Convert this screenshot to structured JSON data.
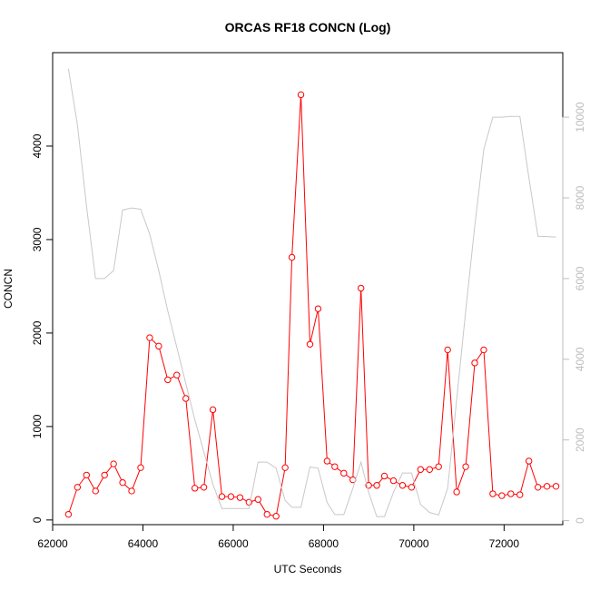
{
  "chart_data": {
    "type": "line",
    "title": "ORCAS RF18 CONCN (Log)",
    "xlabel": "UTC Seconds",
    "ylabel": "CONCN",
    "xlim": [
      62000,
      73300
    ],
    "ylim": [
      -50,
      5000
    ],
    "y2lim": [
      -100,
      11600
    ],
    "x_ticks": [
      "62000",
      "64000",
      "66000",
      "68000",
      "70000",
      "72000"
    ],
    "y_ticks": [
      "0",
      "1000",
      "2000",
      "3000",
      "4000"
    ],
    "y2_ticks": [
      "0",
      "2000",
      "4000",
      "6000",
      "8000",
      "10000"
    ],
    "grid": false,
    "series": [
      {
        "color": "#ff0000",
        "marker": "open-circle",
        "axis": "left",
        "x": [
          62350,
          62550,
          62750,
          62950,
          63150,
          63350,
          63550,
          63750,
          63950,
          64150,
          64350,
          64550,
          64750,
          64950,
          65150,
          65350,
          65550,
          65750,
          65950,
          66150,
          66350,
          66550,
          66750,
          66950,
          67150,
          67300,
          67500,
          67700,
          67880,
          68080,
          68250,
          68450,
          68650,
          68830,
          69000,
          69180,
          69350,
          69550,
          69750,
          69950,
          70150,
          70350,
          70550,
          70750,
          70950,
          71150,
          71350,
          71550,
          71750,
          71950,
          72150,
          72350,
          72550,
          72750,
          72950,
          73150
        ],
        "values": [
          60,
          350,
          480,
          310,
          480,
          600,
          400,
          310,
          560,
          1950,
          1860,
          1500,
          1550,
          1300,
          340,
          350,
          1180,
          250,
          250,
          240,
          190,
          220,
          60,
          40,
          560,
          2810,
          4550,
          1880,
          2260,
          630,
          570,
          500,
          430,
          2480,
          370,
          370,
          470,
          420,
          370,
          350,
          540,
          540,
          570,
          1820,
          300,
          570,
          1680,
          1820,
          280,
          260,
          280,
          270,
          630,
          350,
          360,
          360
        ]
      },
      {
        "color": "#c8c8c8",
        "marker": "none",
        "axis": "right",
        "x": [
          62350,
          62550,
          62750,
          62950,
          63150,
          63350,
          63550,
          63750,
          63950,
          64150,
          64350,
          64550,
          64750,
          64950,
          65150,
          65350,
          65550,
          65750,
          65950,
          66150,
          66350,
          66550,
          66750,
          66950,
          67150,
          67300,
          67500,
          67700,
          67880,
          68080,
          68250,
          68450,
          68650,
          68830,
          69000,
          69180,
          69350,
          69550,
          69750,
          69950,
          70150,
          70350,
          70550,
          70750,
          70950,
          71150,
          71350,
          71550,
          71750,
          71950,
          72150,
          72350,
          72550,
          72750,
          72950,
          73150
        ],
        "values": [
          11200,
          9800,
          7800,
          6000,
          6000,
          6200,
          7700,
          7750,
          7720,
          7100,
          6200,
          5200,
          4300,
          3400,
          2500,
          1700,
          900,
          300,
          300,
          300,
          300,
          1450,
          1450,
          1300,
          500,
          330,
          330,
          1330,
          1300,
          450,
          150,
          150,
          800,
          1450,
          700,
          100,
          100,
          700,
          1180,
          1180,
          400,
          200,
          140,
          800,
          3000,
          5200,
          7300,
          9200,
          10000,
          10000,
          10020,
          10020,
          8500,
          7050,
          7040,
          7030
        ]
      }
    ]
  }
}
